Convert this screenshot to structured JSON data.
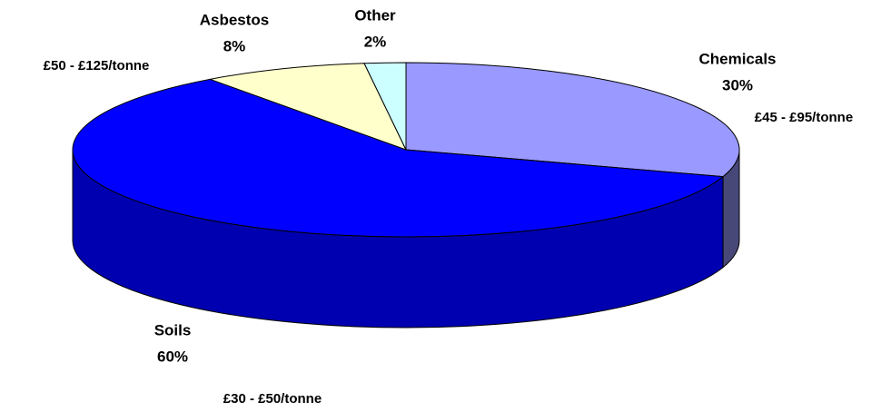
{
  "chart_data": {
    "type": "pie3d",
    "categories": [
      "Chemicals",
      "Soils",
      "Asbestos",
      "Other"
    ],
    "values": [
      30,
      60,
      8,
      2
    ],
    "value_labels": [
      "30%",
      "60%",
      "8%",
      "2%"
    ],
    "colors": [
      "#9999ff",
      "#0000ff",
      "#ffffcc",
      "#ccffff"
    ],
    "annotations": [
      "£45 - £95/tonne",
      "£30 - £50/tonne",
      "£50 - £125/tonne"
    ]
  }
}
